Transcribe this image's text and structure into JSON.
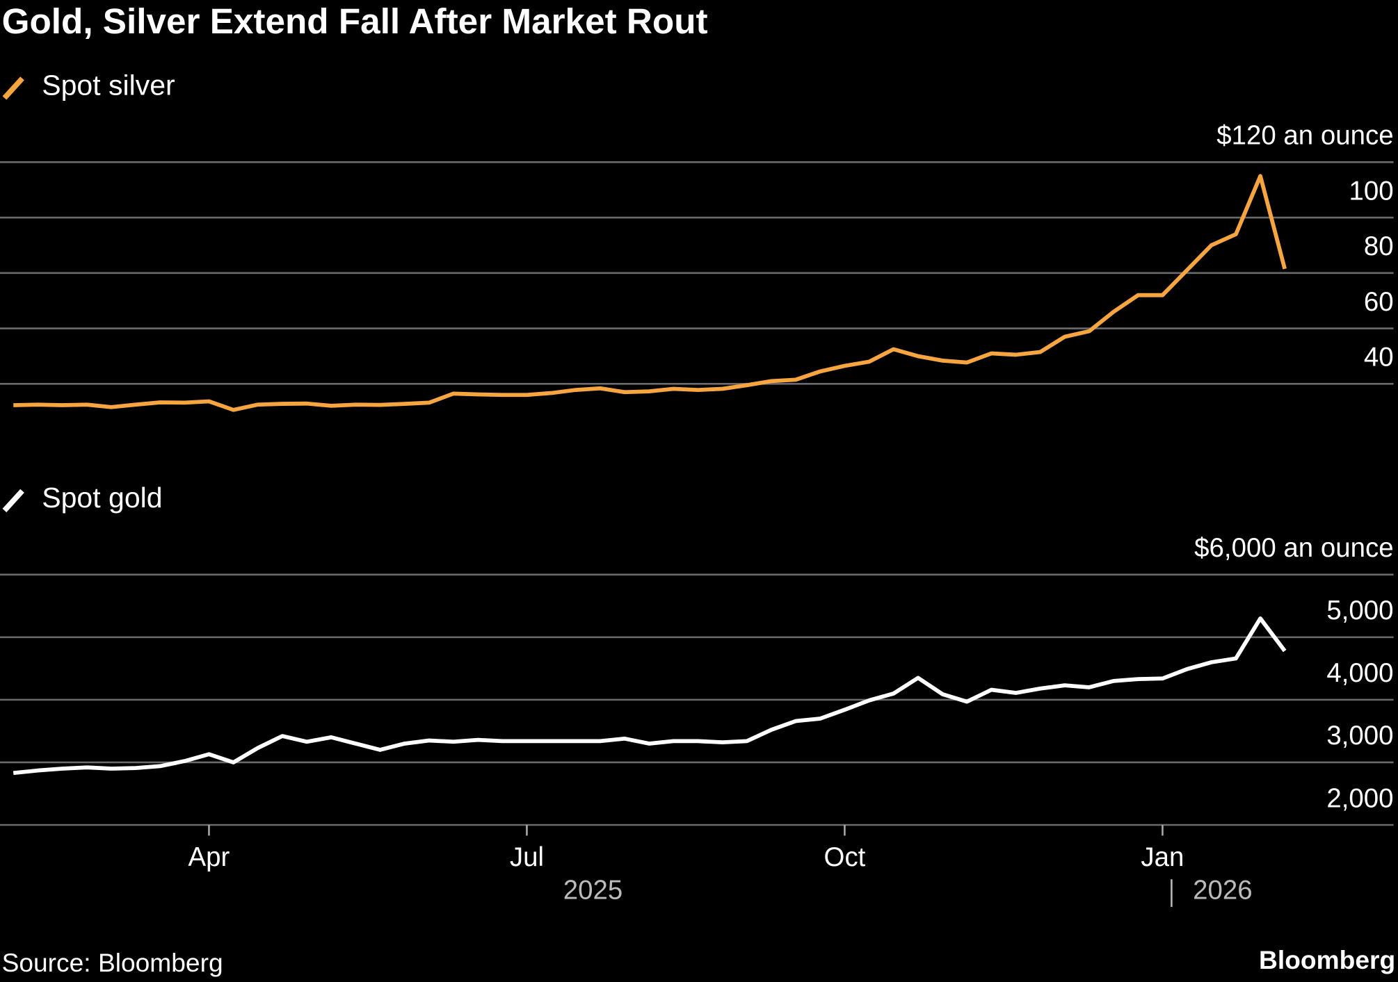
{
  "title": "Gold, Silver Extend Fall After Market Rout",
  "source": "Source: Bloomberg",
  "brand": "Bloomberg",
  "chart_data": [
    {
      "type": "line",
      "ylim": [
        30,
        120
      ],
      "yticks": [
        40,
        60,
        80,
        100,
        {
          "value": 120,
          "label": "$120 an ounce"
        }
      ],
      "grid": true,
      "series": [
        {
          "name": "Spot silver",
          "color": "#f7a540",
          "values": [
            32.3,
            32.5,
            32.3,
            32.5,
            31.6,
            32.5,
            33.3,
            33.2,
            33.7,
            30.6,
            32.5,
            32.8,
            32.9,
            32.1,
            32.5,
            32.4,
            32.8,
            33.2,
            36.5,
            36.2,
            36.0,
            36.0,
            36.7,
            37.8,
            38.4,
            37.0,
            37.3,
            38.2,
            37.8,
            38.2,
            39.5,
            41.0,
            41.5,
            44.5,
            46.5,
            48.0,
            52.5,
            50.0,
            48.4,
            47.7,
            51.0,
            50.5,
            51.5,
            57.0,
            59.0,
            66.0,
            72.0,
            72.0,
            81.0,
            90.0,
            94.0,
            115.0,
            81.5
          ]
        }
      ]
    },
    {
      "type": "line",
      "ylim": [
        2000,
        6000
      ],
      "yticks": [
        {
          "value": 2000,
          "label": "2,000"
        },
        {
          "value": 3000,
          "label": "3,000"
        },
        {
          "value": 4000,
          "label": "4,000"
        },
        {
          "value": 5000,
          "label": "5,000"
        },
        {
          "value": 6000,
          "label": "$6,000 an ounce"
        }
      ],
      "grid": true,
      "categories": [
        null,
        null,
        null,
        null,
        null,
        null,
        null,
        null,
        "Apr",
        null,
        null,
        null,
        null,
        null,
        null,
        null,
        null,
        null,
        null,
        null,
        null,
        "Jul",
        null,
        null,
        null,
        null,
        null,
        null,
        null,
        null,
        null,
        null,
        null,
        null,
        "Oct",
        null,
        null,
        null,
        null,
        null,
        null,
        null,
        null,
        null,
        null,
        null,
        null,
        "Jan",
        null,
        null,
        null,
        null,
        null
      ],
      "year_labels": [
        "2025",
        "2026"
      ],
      "series": [
        {
          "name": "Spot gold",
          "color": "#ffffff",
          "values": [
            2830,
            2870,
            2900,
            2920,
            2900,
            2910,
            2940,
            3020,
            3130,
            3000,
            3230,
            3420,
            3330,
            3400,
            3300,
            3200,
            3300,
            3350,
            3330,
            3360,
            3340,
            3340,
            3340,
            3340,
            3340,
            3380,
            3300,
            3340,
            3340,
            3320,
            3340,
            3520,
            3660,
            3700,
            3840,
            3990,
            4100,
            4350,
            4090,
            3970,
            4160,
            4110,
            4180,
            4230,
            4200,
            4300,
            4330,
            4340,
            4490,
            4600,
            4660,
            5300,
            4780
          ]
        }
      ]
    }
  ]
}
